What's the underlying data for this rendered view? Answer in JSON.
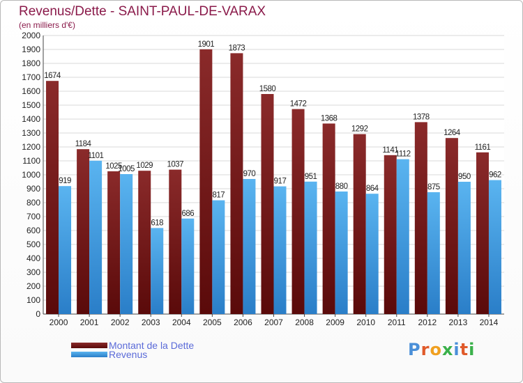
{
  "title": "Revenus/Dette - SAINT-PAUL-DE-VARAX",
  "subtitle": "(en milliers d'€)",
  "logo": {
    "text": "Proxiti",
    "letter_colors": [
      "#4a8fd8",
      "#e05a2a",
      "#f0a020",
      "#3ab04a",
      "#4a8fd8",
      "#e05a2a",
      "#3ab04a"
    ]
  },
  "colors": {
    "dette": "#7a1c1c",
    "revenus": "#4aa6e8",
    "axis_text": "#222222",
    "grid": "#d8d8d8"
  },
  "chart_data": {
    "type": "bar",
    "categories": [
      "2000",
      "2001",
      "2002",
      "2003",
      "2004",
      "2005",
      "2006",
      "2007",
      "2008",
      "2009",
      "2010",
      "2011",
      "2012",
      "2013",
      "2014"
    ],
    "series": [
      {
        "name": "Montant de la Dette",
        "values": [
          1674,
          1184,
          1025,
          1029,
          1037,
          1901,
          1873,
          1580,
          1472,
          1368,
          1292,
          1141,
          1378,
          1264,
          1161
        ]
      },
      {
        "name": "Revenus",
        "values": [
          919,
          1101,
          1005,
          618,
          686,
          817,
          970,
          917,
          951,
          880,
          864,
          1112,
          875,
          950,
          962
        ]
      }
    ],
    "ylim": [
      0,
      2000
    ],
    "yticks": [
      0,
      100,
      200,
      300,
      400,
      500,
      600,
      700,
      800,
      900,
      1000,
      1100,
      1200,
      1300,
      1400,
      1500,
      1600,
      1700,
      1800,
      1900,
      2000
    ],
    "xlabel": "",
    "ylabel": "",
    "grid": true,
    "legend_position": "bottom-left"
  }
}
